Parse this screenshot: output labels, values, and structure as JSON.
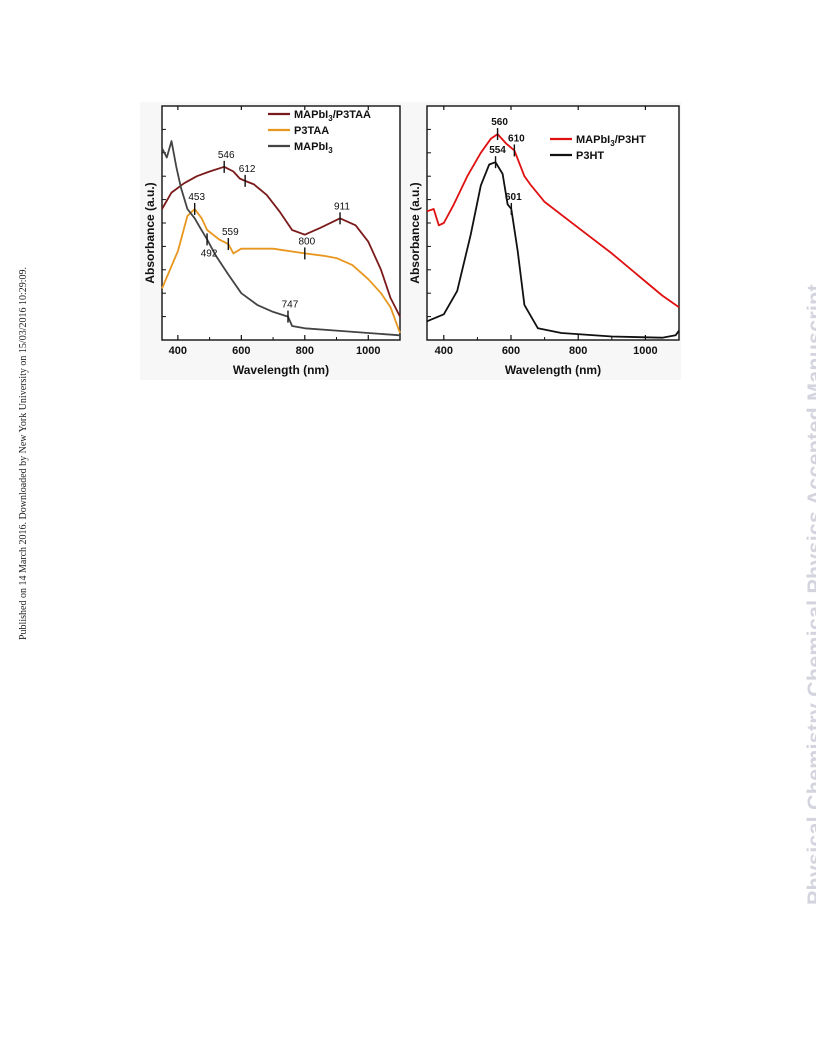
{
  "page": {
    "side_note": "Published on 14 March 2016. Downloaded by New York University on 15/03/2016 10:29:09.",
    "watermark": "Physical Chemistry Chemical Physics Accepted Manuscript"
  },
  "chart_data": [
    {
      "type": "line",
      "title": "",
      "xlabel": "Wavelength (nm)",
      "ylabel": "Absorbance (a.u.)",
      "xlim": [
        350,
        1100
      ],
      "ylim": [
        0,
        1
      ],
      "xticks": [
        400,
        600,
        800,
        1000
      ],
      "legend_position": "top-right",
      "grid": false,
      "series": [
        {
          "name": "MAPbI3/P3TAA",
          "legend_main": "MAPbI",
          "legend_sub": "3",
          "legend_tail": "/P3TAA",
          "color": "#7b1a1a",
          "x": [
            350,
            380,
            420,
            460,
            500,
            546,
            575,
            595,
            612,
            640,
            680,
            720,
            760,
            800,
            850,
            911,
            960,
            1000,
            1040,
            1070,
            1100
          ],
          "y": [
            0.56,
            0.63,
            0.67,
            0.7,
            0.72,
            0.74,
            0.72,
            0.69,
            0.68,
            0.665,
            0.62,
            0.55,
            0.47,
            0.45,
            0.48,
            0.52,
            0.49,
            0.42,
            0.3,
            0.18,
            0.1
          ]
        },
        {
          "name": "P3TAA",
          "color": "#e8961e",
          "x": [
            350,
            400,
            430,
            453,
            475,
            492,
            530,
            559,
            575,
            600,
            700,
            800,
            860,
            900,
            950,
            1000,
            1040,
            1070,
            1100
          ],
          "y": [
            0.22,
            0.38,
            0.53,
            0.56,
            0.52,
            0.47,
            0.43,
            0.41,
            0.37,
            0.39,
            0.39,
            0.37,
            0.36,
            0.35,
            0.32,
            0.26,
            0.2,
            0.14,
            0.03
          ]
        },
        {
          "name": "MAPbI3",
          "legend_main": "MAPbI",
          "legend_sub": "3",
          "legend_tail": "",
          "color": "#444444",
          "x": [
            350,
            365,
            380,
            395,
            410,
            430,
            453,
            470,
            492,
            520,
            559,
            600,
            650,
            700,
            747,
            760,
            800,
            900,
            1000,
            1100
          ],
          "y": [
            0.82,
            0.78,
            0.85,
            0.74,
            0.65,
            0.56,
            0.52,
            0.48,
            0.43,
            0.36,
            0.28,
            0.2,
            0.15,
            0.12,
            0.1,
            0.06,
            0.05,
            0.04,
            0.03,
            0.02
          ]
        }
      ],
      "annotations": [
        {
          "label": "546",
          "x": 546,
          "y": 0.74
        },
        {
          "label": "612",
          "x": 612,
          "y": 0.68
        },
        {
          "label": "911",
          "x": 911,
          "y": 0.52
        },
        {
          "label": "453",
          "x": 453,
          "y": 0.56
        },
        {
          "label": "559",
          "x": 559,
          "y": 0.41
        },
        {
          "label": "800",
          "x": 800,
          "y": 0.37
        },
        {
          "label": "492",
          "x": 492,
          "y": 0.43
        },
        {
          "label": "747",
          "x": 747,
          "y": 0.1
        }
      ]
    },
    {
      "type": "line",
      "title": "",
      "xlabel": "Wavelength (nm)",
      "ylabel": "Absorbance (a.u.)",
      "xlim": [
        350,
        1100
      ],
      "ylim": [
        0,
        1
      ],
      "xticks": [
        400,
        600,
        800,
        1000
      ],
      "legend_position": "top-right",
      "grid": false,
      "series": [
        {
          "name": "MAPbI3/P3HT",
          "legend_main": "MAPbI",
          "legend_sub": "3",
          "legend_tail": "/P3HT",
          "color": "#e01010",
          "x": [
            350,
            370,
            385,
            400,
            430,
            470,
            510,
            540,
            560,
            585,
            610,
            640,
            660,
            700,
            800,
            900,
            1000,
            1050,
            1100
          ],
          "y": [
            0.55,
            0.56,
            0.49,
            0.5,
            0.58,
            0.7,
            0.8,
            0.86,
            0.88,
            0.84,
            0.81,
            0.7,
            0.66,
            0.59,
            0.48,
            0.37,
            0.25,
            0.19,
            0.14
          ]
        },
        {
          "name": "P3HT",
          "color": "#111111",
          "x": [
            350,
            400,
            440,
            480,
            510,
            535,
            554,
            575,
            590,
            601,
            620,
            640,
            680,
            750,
            900,
            1050,
            1090,
            1100
          ],
          "y": [
            0.08,
            0.11,
            0.21,
            0.45,
            0.66,
            0.75,
            0.76,
            0.71,
            0.58,
            0.56,
            0.38,
            0.15,
            0.05,
            0.03,
            0.015,
            0.01,
            0.02,
            0.04
          ]
        }
      ],
      "annotations": [
        {
          "label": "560",
          "x": 560,
          "y": 0.88
        },
        {
          "label": "610",
          "x": 610,
          "y": 0.81
        },
        {
          "label": "554",
          "x": 554,
          "y": 0.76
        },
        {
          "label": "601",
          "x": 601,
          "y": 0.56
        }
      ]
    }
  ]
}
